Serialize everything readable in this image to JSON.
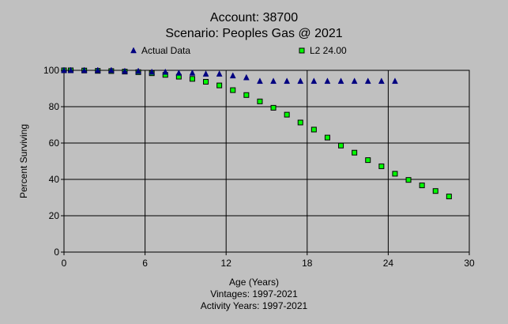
{
  "title": {
    "line1": "Account: 38700",
    "line2": "Scenario: Peoples Gas @ 2021"
  },
  "footer": {
    "xlabel": "Age (Years)",
    "vintages": "Vintages: 1997-2021",
    "activity": "Activity Years: 1997-2021"
  },
  "legend": {
    "actual": "Actual Data",
    "l2": "L2 24.00"
  },
  "colors": {
    "background": "#c0c0c0",
    "actual_marker": "#000080",
    "l2_fill": "#00ff00",
    "l2_stroke": "#000000"
  },
  "chart_data": {
    "type": "scatter",
    "xlabel": "Age (Years)",
    "ylabel": "Percent Surviving",
    "xlim": [
      0,
      30
    ],
    "ylim": [
      0,
      100
    ],
    "xticks": [
      0,
      6,
      12,
      18,
      24,
      30
    ],
    "yticks": [
      0,
      20,
      40,
      60,
      80,
      100
    ],
    "grid": true,
    "legend_position": "top",
    "series": [
      {
        "name": "Actual Data",
        "marker": "triangle",
        "x": [
          0,
          0.5,
          1.5,
          2.5,
          3.5,
          4.5,
          5.5,
          6.5,
          7.5,
          8.5,
          9.5,
          10.5,
          11.5,
          12.5,
          13.5,
          14.5,
          15.5,
          16.5,
          17.5,
          18.5,
          19.5,
          20.5,
          21.5,
          22.5,
          23.5,
          24.5
        ],
        "y": [
          100,
          100,
          100,
          100,
          100,
          99.5,
          99.5,
          99,
          99,
          98.5,
          98.5,
          98,
          98,
          97,
          96,
          94,
          94,
          94,
          94,
          94,
          94,
          94,
          94,
          94,
          94,
          94
        ]
      },
      {
        "name": "L2 24.00",
        "marker": "square",
        "x": [
          0,
          0.5,
          1.5,
          2.5,
          3.5,
          4.5,
          5.5,
          6.5,
          7.5,
          8.5,
          9.5,
          10.5,
          11.5,
          12.5,
          13.5,
          14.5,
          15.5,
          16.5,
          17.5,
          18.5,
          19.5,
          20.5,
          21.5,
          22.5,
          23.5,
          24.5,
          25.5,
          26.5,
          27.5,
          28.5
        ],
        "y": [
          100,
          100,
          99.9,
          99.7,
          99.6,
          99.3,
          99.0,
          98.4,
          97.5,
          96.5,
          95.3,
          93.7,
          91.7,
          89.1,
          86.4,
          82.9,
          79.4,
          75.6,
          71.3,
          67.4,
          63.0,
          58.6,
          54.7,
          50.6,
          47.2,
          43.1,
          39.7,
          36.7,
          33.6,
          30.6
        ]
      }
    ]
  }
}
